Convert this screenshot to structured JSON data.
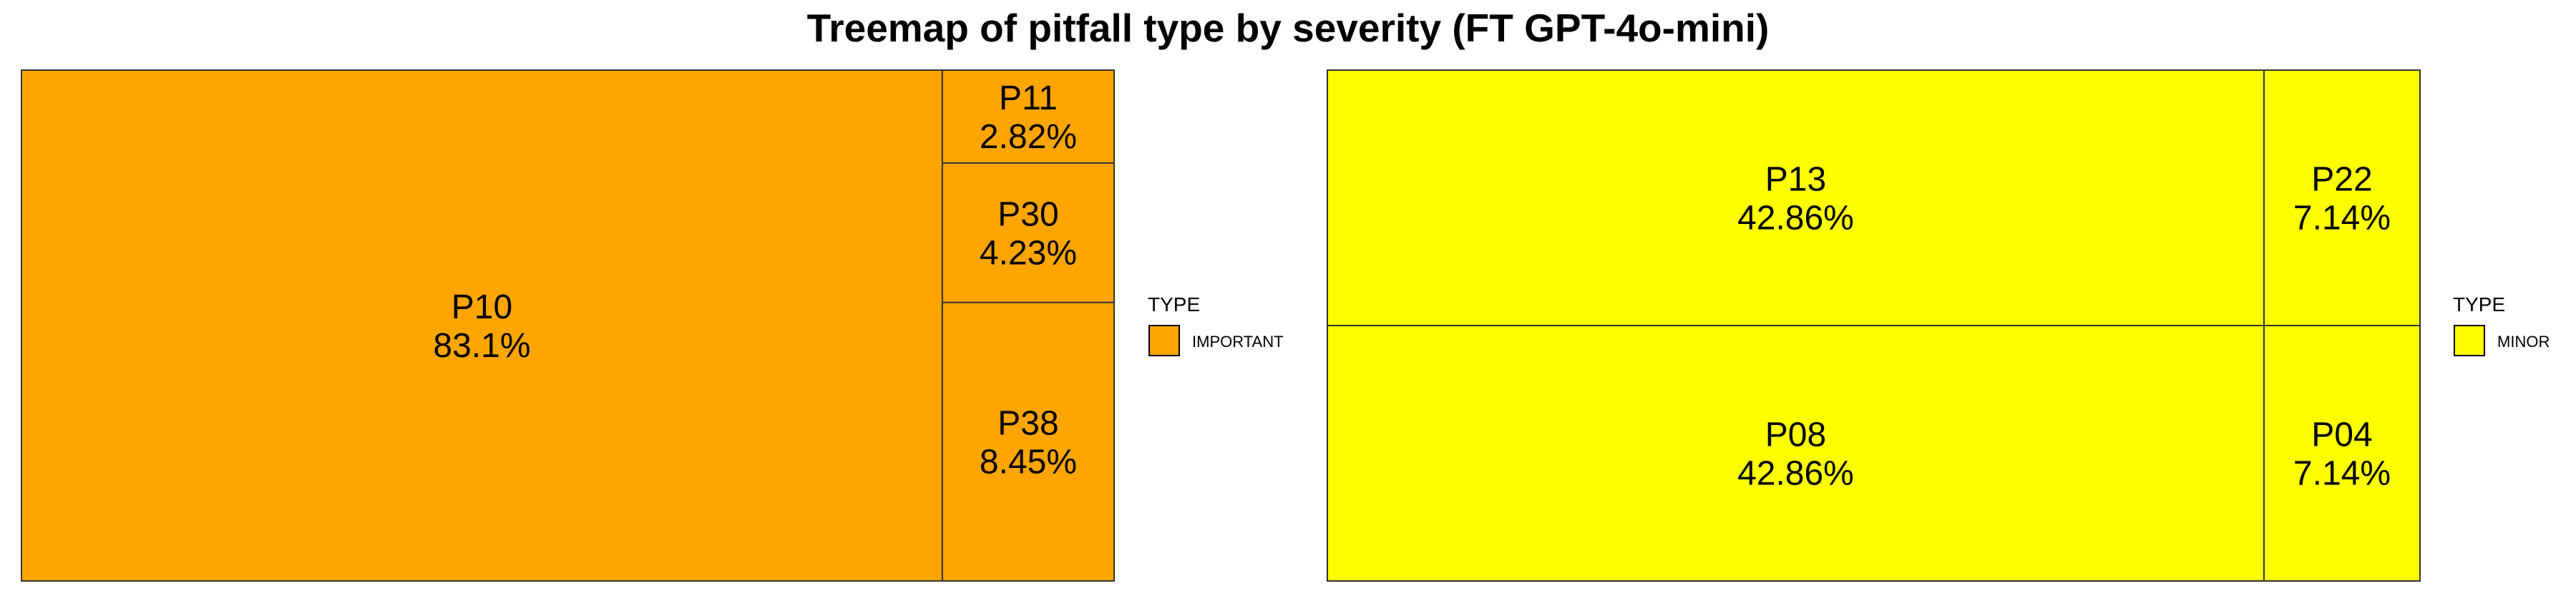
{
  "chart_data": {
    "type": "treemap",
    "title": "Treemap of pitfall type by severity (FT GPT-4o-mini)",
    "panels": [
      {
        "legend_title": "TYPE",
        "legend_label": "IMPORTANT",
        "color": "#FFA500",
        "tiles": [
          {
            "label": "P10",
            "percent": "83.1%",
            "value": 83.1
          },
          {
            "label": "P11",
            "percent": "2.82%",
            "value": 2.82
          },
          {
            "label": "P30",
            "percent": "4.23%",
            "value": 4.23
          },
          {
            "label": "P38",
            "percent": "8.45%",
            "value": 8.45
          }
        ]
      },
      {
        "legend_title": "TYPE",
        "legend_label": "MINOR",
        "color": "#FFFF00",
        "tiles": [
          {
            "label": "P13",
            "percent": "42.86%",
            "value": 42.86
          },
          {
            "label": "P22",
            "percent": "7.14%",
            "value": 7.14
          },
          {
            "label": "P08",
            "percent": "42.86%",
            "value": 42.86
          },
          {
            "label": "P04",
            "percent": "7.14%",
            "value": 7.14
          }
        ]
      }
    ]
  }
}
